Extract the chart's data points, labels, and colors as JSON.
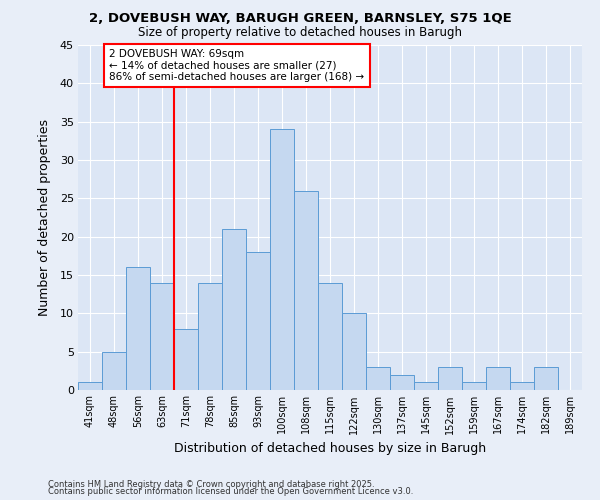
{
  "title1": "2, DOVEBUSH WAY, BARUGH GREEN, BARNSLEY, S75 1QE",
  "title2": "Size of property relative to detached houses in Barugh",
  "xlabel": "Distribution of detached houses by size in Barugh",
  "ylabel": "Number of detached properties",
  "categories": [
    "41sqm",
    "48sqm",
    "56sqm",
    "63sqm",
    "71sqm",
    "78sqm",
    "85sqm",
    "93sqm",
    "100sqm",
    "108sqm",
    "115sqm",
    "122sqm",
    "130sqm",
    "137sqm",
    "145sqm",
    "152sqm",
    "159sqm",
    "167sqm",
    "174sqm",
    "182sqm",
    "189sqm"
  ],
  "values": [
    1,
    5,
    16,
    14,
    8,
    14,
    21,
    18,
    34,
    26,
    14,
    10,
    3,
    2,
    1,
    3,
    1,
    3,
    1,
    3,
    0
  ],
  "bar_color": "#c5d8f0",
  "bar_edge_color": "#5b9bd5",
  "vline_index": 4,
  "vline_color": "red",
  "annotation_text": "2 DOVEBUSH WAY: 69sqm\n← 14% of detached houses are smaller (27)\n86% of semi-detached houses are larger (168) →",
  "annotation_box_color": "white",
  "annotation_box_edge": "red",
  "ylim": [
    0,
    45
  ],
  "yticks": [
    0,
    5,
    10,
    15,
    20,
    25,
    30,
    35,
    40,
    45
  ],
  "fig_bg_color": "#e8eef8",
  "ax_bg_color": "#dce6f5",
  "grid_color": "white",
  "footer1": "Contains HM Land Registry data © Crown copyright and database right 2025.",
  "footer2": "Contains public sector information licensed under the Open Government Licence v3.0."
}
